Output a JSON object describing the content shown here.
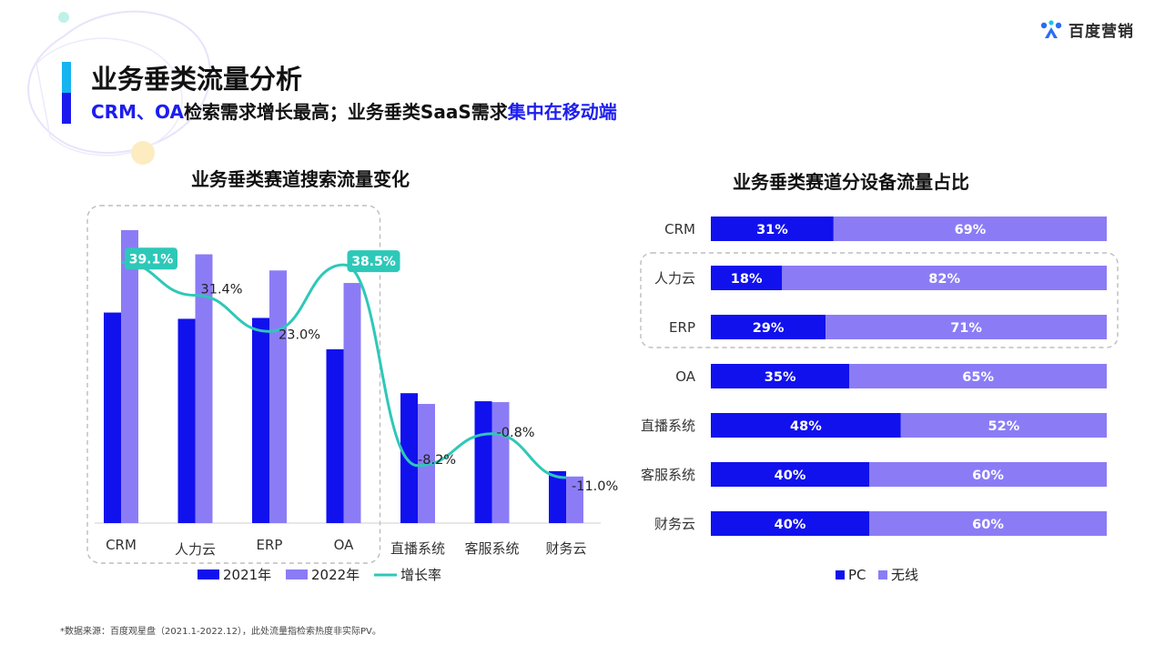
{
  "header": {
    "brand": "百度营销",
    "title": "业务垂类流量分析",
    "subtitle_parts": [
      {
        "text": "CRM、OA",
        "highlight": true
      },
      {
        "text": "检索需求增长最高；业务垂类SaaS需求",
        "highlight": false
      },
      {
        "text": "集中在移动端",
        "highlight": true
      }
    ]
  },
  "colors": {
    "accent_blue": "#1a1aee",
    "accent_cyan": "#16b4f0",
    "series_2021": "#1111ee",
    "series_2022": "#8b7cf6",
    "growth_line": "#2ec8b8",
    "pc": "#1111ee",
    "wireless": "#8b7cf6"
  },
  "chart_data": [
    {
      "type": "bar",
      "title": "业务垂类赛道搜索流量变化",
      "categories": [
        "CRM",
        "人力云",
        "ERP",
        "OA",
        "直播系统",
        "客服系统",
        "财务云"
      ],
      "series": [
        {
          "name": "2021年",
          "type": "bar",
          "values": [
            235,
            228,
            229,
            194,
            145,
            136,
            58
          ]
        },
        {
          "name": "2022年",
          "type": "bar",
          "values": [
            327,
            300,
            282,
            268,
            133,
            135,
            52
          ]
        },
        {
          "name": "增长率",
          "type": "line",
          "values": [
            39.1,
            31.4,
            23.0,
            38.5,
            -8.2,
            -0.8,
            -11.0
          ],
          "labels": [
            "39.1%",
            "31.4%",
            "23.0%",
            "38.5%",
            "-8.2%",
            "-0.8%",
            "-11.0%"
          ]
        }
      ],
      "highlight_box_categories": [
        "CRM",
        "人力云",
        "ERP",
        "OA"
      ],
      "ylim": [
        0,
        330
      ],
      "growth_range": [
        -11,
        40
      ],
      "legend_position": "bottom"
    },
    {
      "type": "bar",
      "orientation": "horizontal",
      "stacked": true,
      "title": "业务垂类赛道分设备流量占比",
      "categories": [
        "CRM",
        "人力云",
        "ERP",
        "OA",
        "直播系统",
        "客服系统",
        "财务云"
      ],
      "series": [
        {
          "name": "PC",
          "values": [
            31,
            18,
            29,
            35,
            48,
            40,
            40
          ]
        },
        {
          "name": "无线",
          "values": [
            69,
            82,
            71,
            65,
            52,
            60,
            60
          ]
        }
      ],
      "highlight_box_categories": [
        "人力云",
        "ERP"
      ],
      "xlim": [
        0,
        100
      ],
      "legend_position": "bottom"
    }
  ],
  "footnote": "*数据来源：百度观星盘（2021.1-2022.12），此处流量指检索热度非实际PV。"
}
